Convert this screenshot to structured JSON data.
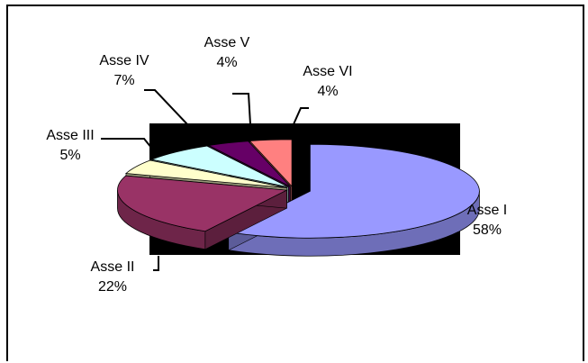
{
  "chart_data": {
    "type": "pie",
    "style": "3d-exploded",
    "plot_background": "#000000",
    "slices": [
      {
        "label": "Asse I",
        "percent_label": "58%",
        "value": 58,
        "color": "#9999ff"
      },
      {
        "label": "Asse II",
        "percent_label": "22%",
        "value": 22,
        "color": "#993366"
      },
      {
        "label": "Asse III",
        "percent_label": "5%",
        "value": 5,
        "color": "#ffffcc"
      },
      {
        "label": "Asse IV",
        "percent_label": "7%",
        "value": 7,
        "color": "#ccffff"
      },
      {
        "label": "Asse V",
        "percent_label": "4%",
        "value": 4,
        "color": "#660066"
      },
      {
        "label": "Asse VI",
        "percent_label": "4%",
        "value": 4,
        "color": "#ff8080"
      }
    ]
  }
}
